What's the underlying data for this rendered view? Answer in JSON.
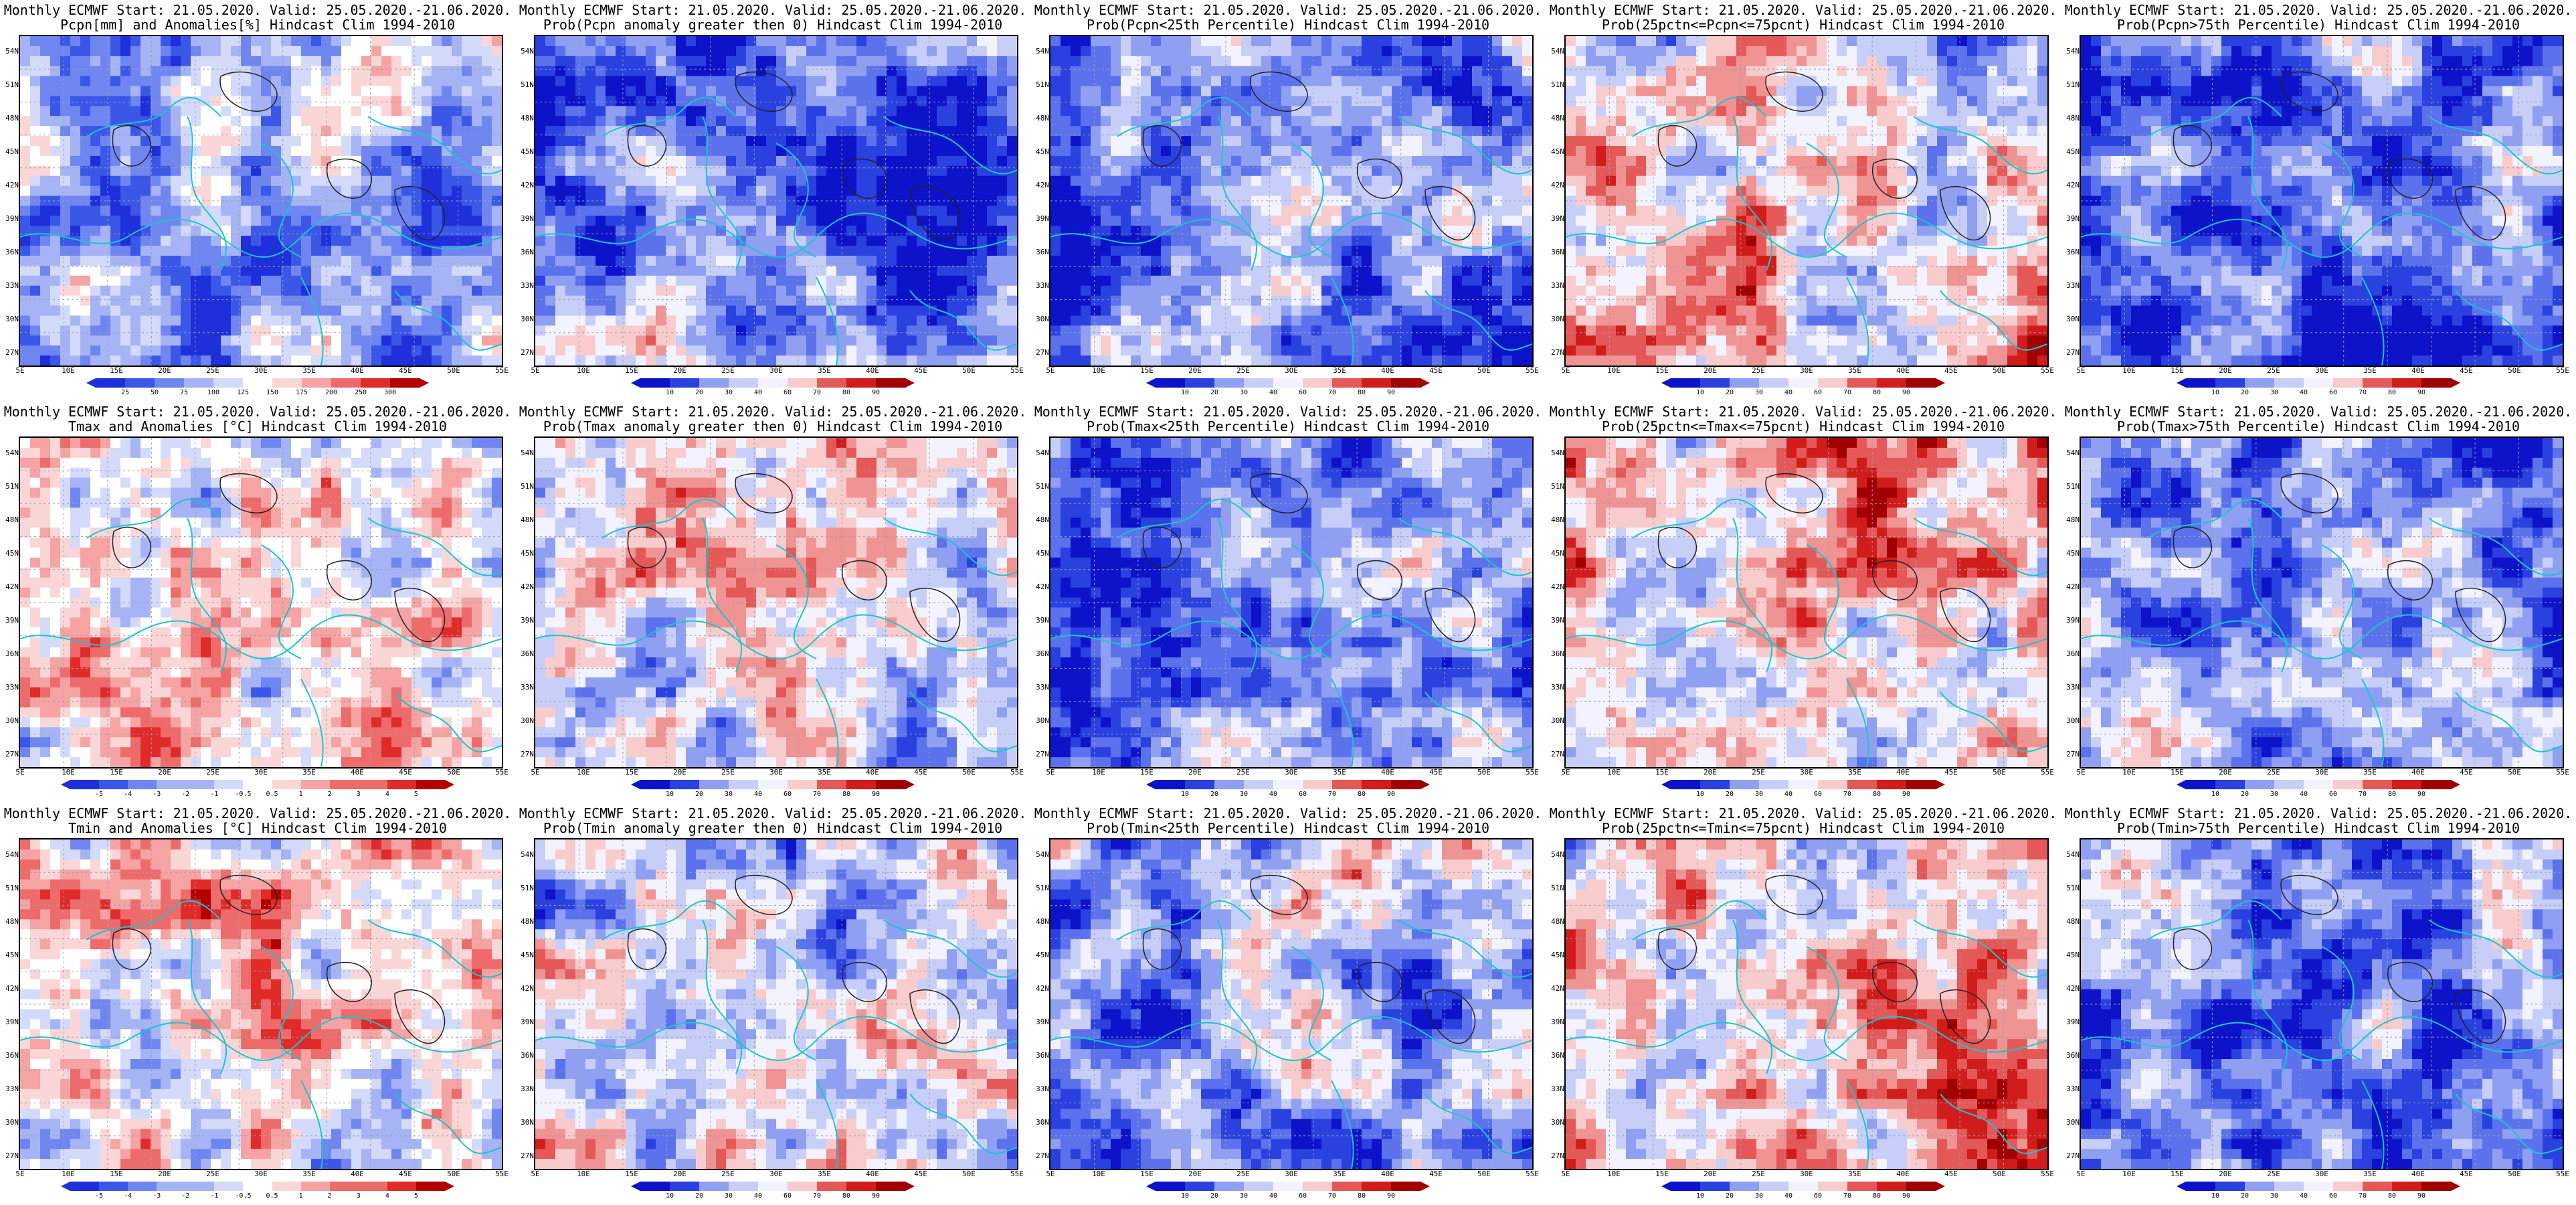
{
  "latitude_labels": [
    "54N",
    "51N",
    "48N",
    "45N",
    "42N",
    "39N",
    "36N",
    "33N",
    "30N",
    "27N"
  ],
  "longitude_labels": [
    "5E",
    "10E",
    "15E",
    "20E",
    "25E",
    "30E",
    "35E",
    "40E",
    "45E",
    "50E",
    "55E"
  ],
  "palettes": {
    "diverging": [
      "#1f2fd9",
      "#3b57e8",
      "#6f86f0",
      "#a6b4f5",
      "#d3dafa",
      "#ffffff",
      "#fbd6d6",
      "#f5a3a3",
      "#ee6b6b",
      "#e02b2b",
      "#b30000"
    ],
    "probability": [
      "#0d13c9",
      "#2a40df",
      "#5c72ec",
      "#8f9ff2",
      "#c7cff8",
      "#f3f3ff",
      "#f8cccc",
      "#ef9393",
      "#e55858",
      "#d11c1c",
      "#a00000"
    ]
  },
  "panels": [
    {
      "row": 0,
      "col": 0,
      "line1": "Monthly ECMWF Start: 21.05.2020. Valid: 25.05.2020.-21.06.2020.",
      "line2": "Pcpn[mm] and Anomalies[%] Hindcast Clim 1994-2010",
      "palette": "diverging",
      "bias": -0.35,
      "ticks": [
        "25",
        "50",
        "75",
        "100",
        "125",
        "150",
        "175",
        "200",
        "250",
        "300"
      ]
    },
    {
      "row": 0,
      "col": 1,
      "line1": "Monthly ECMWF Start: 21.05.2020. Valid: 25.05.2020.-21.06.2020.",
      "line2": "Prob(Pcpn anomaly greater then 0) Hindcast Clim 1994-2010",
      "palette": "probability",
      "bias": -0.55,
      "ticks": [
        "10",
        "20",
        "30",
        "40",
        "60",
        "70",
        "80",
        "90"
      ]
    },
    {
      "row": 0,
      "col": 2,
      "line1": "Monthly ECMWF Start: 21.05.2020. Valid: 25.05.2020.-21.06.2020.",
      "line2": "Prob(Pcpn<25th Percentile) Hindcast Clim 1994-2010",
      "palette": "probability",
      "bias": -0.5,
      "ticks": [
        "10",
        "20",
        "30",
        "40",
        "60",
        "70",
        "80",
        "90"
      ]
    },
    {
      "row": 0,
      "col": 3,
      "line1": "Monthly ECMWF Start: 21.05.2020. Valid: 25.05.2020.-21.06.2020.",
      "line2": "Prob(25pctn<=Pcpn<=75pcnt) Hindcast Clim 1994-2010",
      "palette": "probability",
      "bias": 0.1,
      "ticks": [
        "10",
        "20",
        "30",
        "40",
        "60",
        "70",
        "80",
        "90"
      ]
    },
    {
      "row": 0,
      "col": 4,
      "line1": "Monthly ECMWF Start: 21.05.2020. Valid: 25.05.2020.-21.06.2020.",
      "line2": "Prob(Pcpn>75th Percentile) Hindcast Clim 1994-2010",
      "palette": "probability",
      "bias": -0.6,
      "ticks": [
        "10",
        "20",
        "30",
        "40",
        "60",
        "70",
        "80",
        "90"
      ]
    },
    {
      "row": 1,
      "col": 0,
      "line1": "Monthly ECMWF Start: 21.05.2020. Valid: 25.05.2020.-21.06.2020.",
      "line2": "Tmax and Anomalies [°C] Hindcast Clim 1994-2010",
      "palette": "diverging",
      "bias": 0.05,
      "ticks": [
        "-5",
        "-4",
        "-3",
        "-2",
        "-1",
        "-0.5",
        "0.5",
        "1",
        "2",
        "3",
        "4",
        "5"
      ]
    },
    {
      "row": 1,
      "col": 1,
      "line1": "Monthly ECMWF Start: 21.05.2020. Valid: 25.05.2020.-21.06.2020.",
      "line2": "Prob(Tmax anomaly greater then 0) Hindcast Clim 1994-2010",
      "palette": "probability",
      "bias": 0.0,
      "ticks": [
        "10",
        "20",
        "30",
        "40",
        "60",
        "70",
        "80",
        "90"
      ]
    },
    {
      "row": 1,
      "col": 2,
      "line1": "Monthly ECMWF Start: 21.05.2020. Valid: 25.05.2020.-21.06.2020.",
      "line2": "Prob(Tmax<25th Percentile) Hindcast Clim 1994-2010",
      "palette": "probability",
      "bias": -0.45,
      "ticks": [
        "10",
        "20",
        "30",
        "40",
        "60",
        "70",
        "80",
        "90"
      ]
    },
    {
      "row": 1,
      "col": 3,
      "line1": "Monthly ECMWF Start: 21.05.2020. Valid: 25.05.2020.-21.06.2020.",
      "line2": "Prob(25pctn<=Tmax<=75pcnt) Hindcast Clim 1994-2010",
      "palette": "probability",
      "bias": 0.2,
      "ticks": [
        "10",
        "20",
        "30",
        "40",
        "60",
        "70",
        "80",
        "90"
      ]
    },
    {
      "row": 1,
      "col": 4,
      "line1": "Monthly ECMWF Start: 21.05.2020. Valid: 25.05.2020.-21.06.2020.",
      "line2": "Prob(Tmax>75th Percentile) Hindcast Clim 1994-2010",
      "palette": "probability",
      "bias": -0.45,
      "ticks": [
        "10",
        "20",
        "30",
        "40",
        "60",
        "70",
        "80",
        "90"
      ]
    },
    {
      "row": 2,
      "col": 0,
      "line1": "Monthly ECMWF Start: 21.05.2020. Valid: 25.05.2020.-21.06.2020.",
      "line2": "Tmin and Anomalies [°C] Hindcast Clim 1994-2010",
      "palette": "diverging",
      "bias": 0.05,
      "ticks": [
        "-5",
        "-4",
        "-3",
        "-2",
        "-1",
        "-0.5",
        "0.5",
        "1",
        "2",
        "3",
        "4",
        "5"
      ]
    },
    {
      "row": 2,
      "col": 1,
      "line1": "Monthly ECMWF Start: 21.05.2020. Valid: 25.05.2020.-21.06.2020.",
      "line2": "Prob(Tmin anomaly greater then 0) Hindcast Clim 1994-2010",
      "palette": "probability",
      "bias": -0.1,
      "ticks": [
        "10",
        "20",
        "30",
        "40",
        "60",
        "70",
        "80",
        "90"
      ]
    },
    {
      "row": 2,
      "col": 2,
      "line1": "Monthly ECMWF Start: 21.05.2020. Valid: 25.05.2020.-21.06.2020.",
      "line2": "Prob(Tmin<25th Percentile) Hindcast Clim 1994-2010",
      "palette": "probability",
      "bias": -0.4,
      "ticks": [
        "10",
        "20",
        "30",
        "40",
        "60",
        "70",
        "80",
        "90"
      ]
    },
    {
      "row": 2,
      "col": 3,
      "line1": "Monthly ECMWF Start: 21.05.2020. Valid: 25.05.2020.-21.06.2020.",
      "line2": "Prob(25pctn<=Tmin<=75pcnt) Hindcast Clim 1994-2010",
      "palette": "probability",
      "bias": 0.15,
      "ticks": [
        "10",
        "20",
        "30",
        "40",
        "60",
        "70",
        "80",
        "90"
      ]
    },
    {
      "row": 2,
      "col": 4,
      "line1": "Monthly ECMWF Start: 21.05.2020. Valid: 25.05.2020.-21.06.2020.",
      "line2": "Prob(Tmin>75th Percentile) Hindcast Clim 1994-2010",
      "palette": "probability",
      "bias": -0.45,
      "ticks": [
        "10",
        "20",
        "30",
        "40",
        "60",
        "70",
        "80",
        "90"
      ]
    }
  ]
}
